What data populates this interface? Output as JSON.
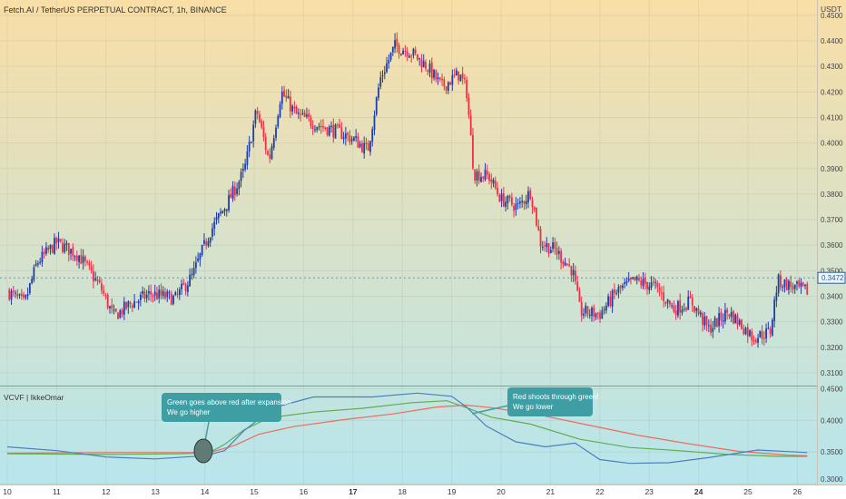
{
  "header": {
    "title": "Fetch.AI / TetherUS PERPETUAL CONTRACT, 1h, BINANCE",
    "currency": "USDT",
    "last_price": "0.3472"
  },
  "indicator": {
    "name": "VCVF | IkkeOmar"
  },
  "colors": {
    "bg_top": "#f9dea6",
    "bg_bottom": "#b5e6ef",
    "bull": "#1f3ea8",
    "bear": "#ef2f45",
    "green_line": "#5fad4f",
    "red_line": "#f06a5f",
    "blue_line": "#4a7fc0",
    "callout": "#3f9ea3",
    "price_tag": "#2f5f9a"
  },
  "annotations": [
    {
      "id": "green-above-red",
      "lines": [
        "Green goes above red after expansion",
        "We go higher"
      ]
    },
    {
      "id": "red-through-green",
      "lines": [
        "Red shoots through green!",
        "We go lower"
      ]
    }
  ],
  "chart_data": [
    {
      "type": "candlestick",
      "title": "Fetch.AI / TetherUS PERPETUAL CONTRACT, 1h, BINANCE",
      "xlabel": "",
      "ylabel": "USDT",
      "x_ticks": [
        "10",
        "11",
        "12",
        "13",
        "14",
        "15",
        "16",
        "17",
        "18",
        "19",
        "20",
        "21",
        "22",
        "23",
        "24",
        "25",
        "26"
      ],
      "y_ticks": [
        "0.4500",
        "0.4400",
        "0.4300",
        "0.4200",
        "0.4100",
        "0.4000",
        "0.3900",
        "0.3800",
        "0.3700",
        "0.3600",
        "0.3500",
        "0.3400",
        "0.3300",
        "0.3200",
        "0.3100"
      ],
      "ylim": [
        0.305,
        0.456
      ],
      "grid": true,
      "close_anchors": [
        [
          0,
          0.342
        ],
        [
          0.35,
          0.337
        ],
        [
          0.6,
          0.353
        ],
        [
          1.0,
          0.361
        ],
        [
          1.45,
          0.356
        ],
        [
          1.9,
          0.343
        ],
        [
          2.15,
          0.332
        ],
        [
          2.5,
          0.337
        ],
        [
          2.9,
          0.341
        ],
        [
          3.4,
          0.339
        ],
        [
          3.75,
          0.348
        ],
        [
          4.1,
          0.365
        ],
        [
          4.5,
          0.378
        ],
        [
          4.8,
          0.389
        ],
        [
          5.05,
          0.413
        ],
        [
          5.3,
          0.393
        ],
        [
          5.55,
          0.42
        ],
        [
          5.85,
          0.411
        ],
        [
          6.3,
          0.407
        ],
        [
          6.75,
          0.404
        ],
        [
          7.05,
          0.401
        ],
        [
          7.3,
          0.397
        ],
        [
          7.55,
          0.425
        ],
        [
          7.85,
          0.438
        ],
        [
          8.15,
          0.436
        ],
        [
          8.5,
          0.43
        ],
        [
          8.8,
          0.422
        ],
        [
          9.15,
          0.427
        ],
        [
          9.3,
          0.421
        ],
        [
          9.45,
          0.388
        ],
        [
          9.75,
          0.387
        ],
        [
          10.0,
          0.378
        ],
        [
          10.35,
          0.375
        ],
        [
          10.6,
          0.381
        ],
        [
          10.8,
          0.361
        ],
        [
          11.1,
          0.358
        ],
        [
          11.45,
          0.35
        ],
        [
          11.6,
          0.334
        ],
        [
          12.0,
          0.333
        ],
        [
          12.35,
          0.342
        ],
        [
          12.7,
          0.346
        ],
        [
          13.1,
          0.344
        ],
        [
          13.5,
          0.335
        ],
        [
          13.85,
          0.338
        ],
        [
          14.2,
          0.327
        ],
        [
          14.6,
          0.334
        ],
        [
          15.1,
          0.324
        ],
        [
          15.45,
          0.326
        ],
        [
          15.6,
          0.346
        ],
        [
          16.0,
          0.343
        ],
        [
          16.2,
          0.342
        ]
      ],
      "current_price": 0.3472
    },
    {
      "type": "line",
      "title": "VCVF | IkkeOmar",
      "y_ticks": [
        "0.4500",
        "0.4000",
        "0.3500",
        "0.3000"
      ],
      "ylim": [
        0.2985,
        0.4535
      ],
      "series": [
        {
          "color": "green",
          "values": [
            [
              0,
              0.347
            ],
            [
              2,
              0.346
            ],
            [
              3.5,
              0.347
            ],
            [
              4.1,
              0.349
            ],
            [
              4.4,
              0.362
            ],
            [
              4.8,
              0.385
            ],
            [
              5.3,
              0.404
            ],
            [
              6.2,
              0.413
            ],
            [
              7.2,
              0.419
            ],
            [
              8.2,
              0.428
            ],
            [
              8.9,
              0.431
            ],
            [
              9.3,
              0.42
            ],
            [
              9.8,
              0.405
            ],
            [
              10.6,
              0.394
            ],
            [
              11.6,
              0.37
            ],
            [
              12.6,
              0.357
            ],
            [
              13.6,
              0.352
            ],
            [
              14.6,
              0.346
            ],
            [
              15.6,
              0.343
            ],
            [
              16.2,
              0.343
            ]
          ]
        },
        {
          "color": "red",
          "values": [
            [
              0,
              0.348
            ],
            [
              2,
              0.349
            ],
            [
              3.5,
              0.349
            ],
            [
              4.1,
              0.349
            ],
            [
              4.6,
              0.36
            ],
            [
              5.1,
              0.378
            ],
            [
              5.8,
              0.39
            ],
            [
              6.8,
              0.401
            ],
            [
              7.8,
              0.41
            ],
            [
              8.7,
              0.421
            ],
            [
              9.3,
              0.424
            ],
            [
              9.8,
              0.42
            ],
            [
              10.8,
              0.408
            ],
            [
              11.8,
              0.392
            ],
            [
              12.8,
              0.376
            ],
            [
              13.8,
              0.363
            ],
            [
              14.8,
              0.351
            ],
            [
              15.8,
              0.345
            ],
            [
              16.2,
              0.344
            ]
          ]
        },
        {
          "color": "blue",
          "values": [
            [
              0,
              0.358
            ],
            [
              1.0,
              0.352
            ],
            [
              2.0,
              0.342
            ],
            [
              3.0,
              0.339
            ],
            [
              4.0,
              0.344
            ],
            [
              4.4,
              0.352
            ],
            [
              4.8,
              0.384
            ],
            [
              5.4,
              0.42
            ],
            [
              6.2,
              0.437
            ],
            [
              7.4,
              0.437
            ],
            [
              8.3,
              0.443
            ],
            [
              9.0,
              0.438
            ],
            [
              9.3,
              0.421
            ],
            [
              9.7,
              0.391
            ],
            [
              10.3,
              0.366
            ],
            [
              10.9,
              0.358
            ],
            [
              11.5,
              0.364
            ],
            [
              12.0,
              0.338
            ],
            [
              12.6,
              0.332
            ],
            [
              13.4,
              0.333
            ],
            [
              14.2,
              0.341
            ],
            [
              15.2,
              0.353
            ],
            [
              16.2,
              0.349
            ]
          ]
        }
      ]
    }
  ]
}
